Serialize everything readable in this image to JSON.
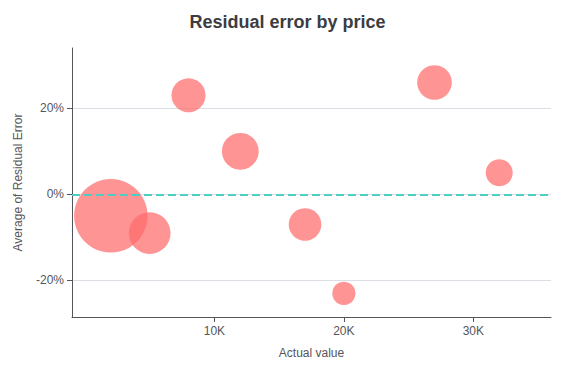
{
  "chart_data": {
    "type": "scatter",
    "title": "Residual error by price",
    "xlabel": "Actual value",
    "ylabel": "Average of Residual Error",
    "color": "#ff6b6b",
    "x": [
      2000,
      5000,
      8000,
      12000,
      17000,
      20000,
      27000,
      32000
    ],
    "values": [
      -0.05,
      -0.09,
      0.23,
      0.1,
      -0.07,
      -0.23,
      0.26,
      0.05
    ],
    "sizes": [
      2800,
      900,
      600,
      700,
      550,
      280,
      620,
      380
    ],
    "xlim": [
      -1000,
      36000
    ],
    "ylim": [
      -0.285,
      0.34
    ],
    "xticks": [
      {
        "value": 10000,
        "label": "10K"
      },
      {
        "value": 20000,
        "label": "20K"
      },
      {
        "value": 30000,
        "label": "30K"
      }
    ],
    "yticks": [
      {
        "value": -0.2,
        "label": "-20%"
      },
      {
        "value": 0.0,
        "label": "0%"
      },
      {
        "value": 0.2,
        "label": "20%"
      }
    ],
    "grid": "y",
    "reference_lines": [
      {
        "y": 0,
        "color": "#4ecdc4",
        "line_style": "dashed"
      }
    ]
  }
}
